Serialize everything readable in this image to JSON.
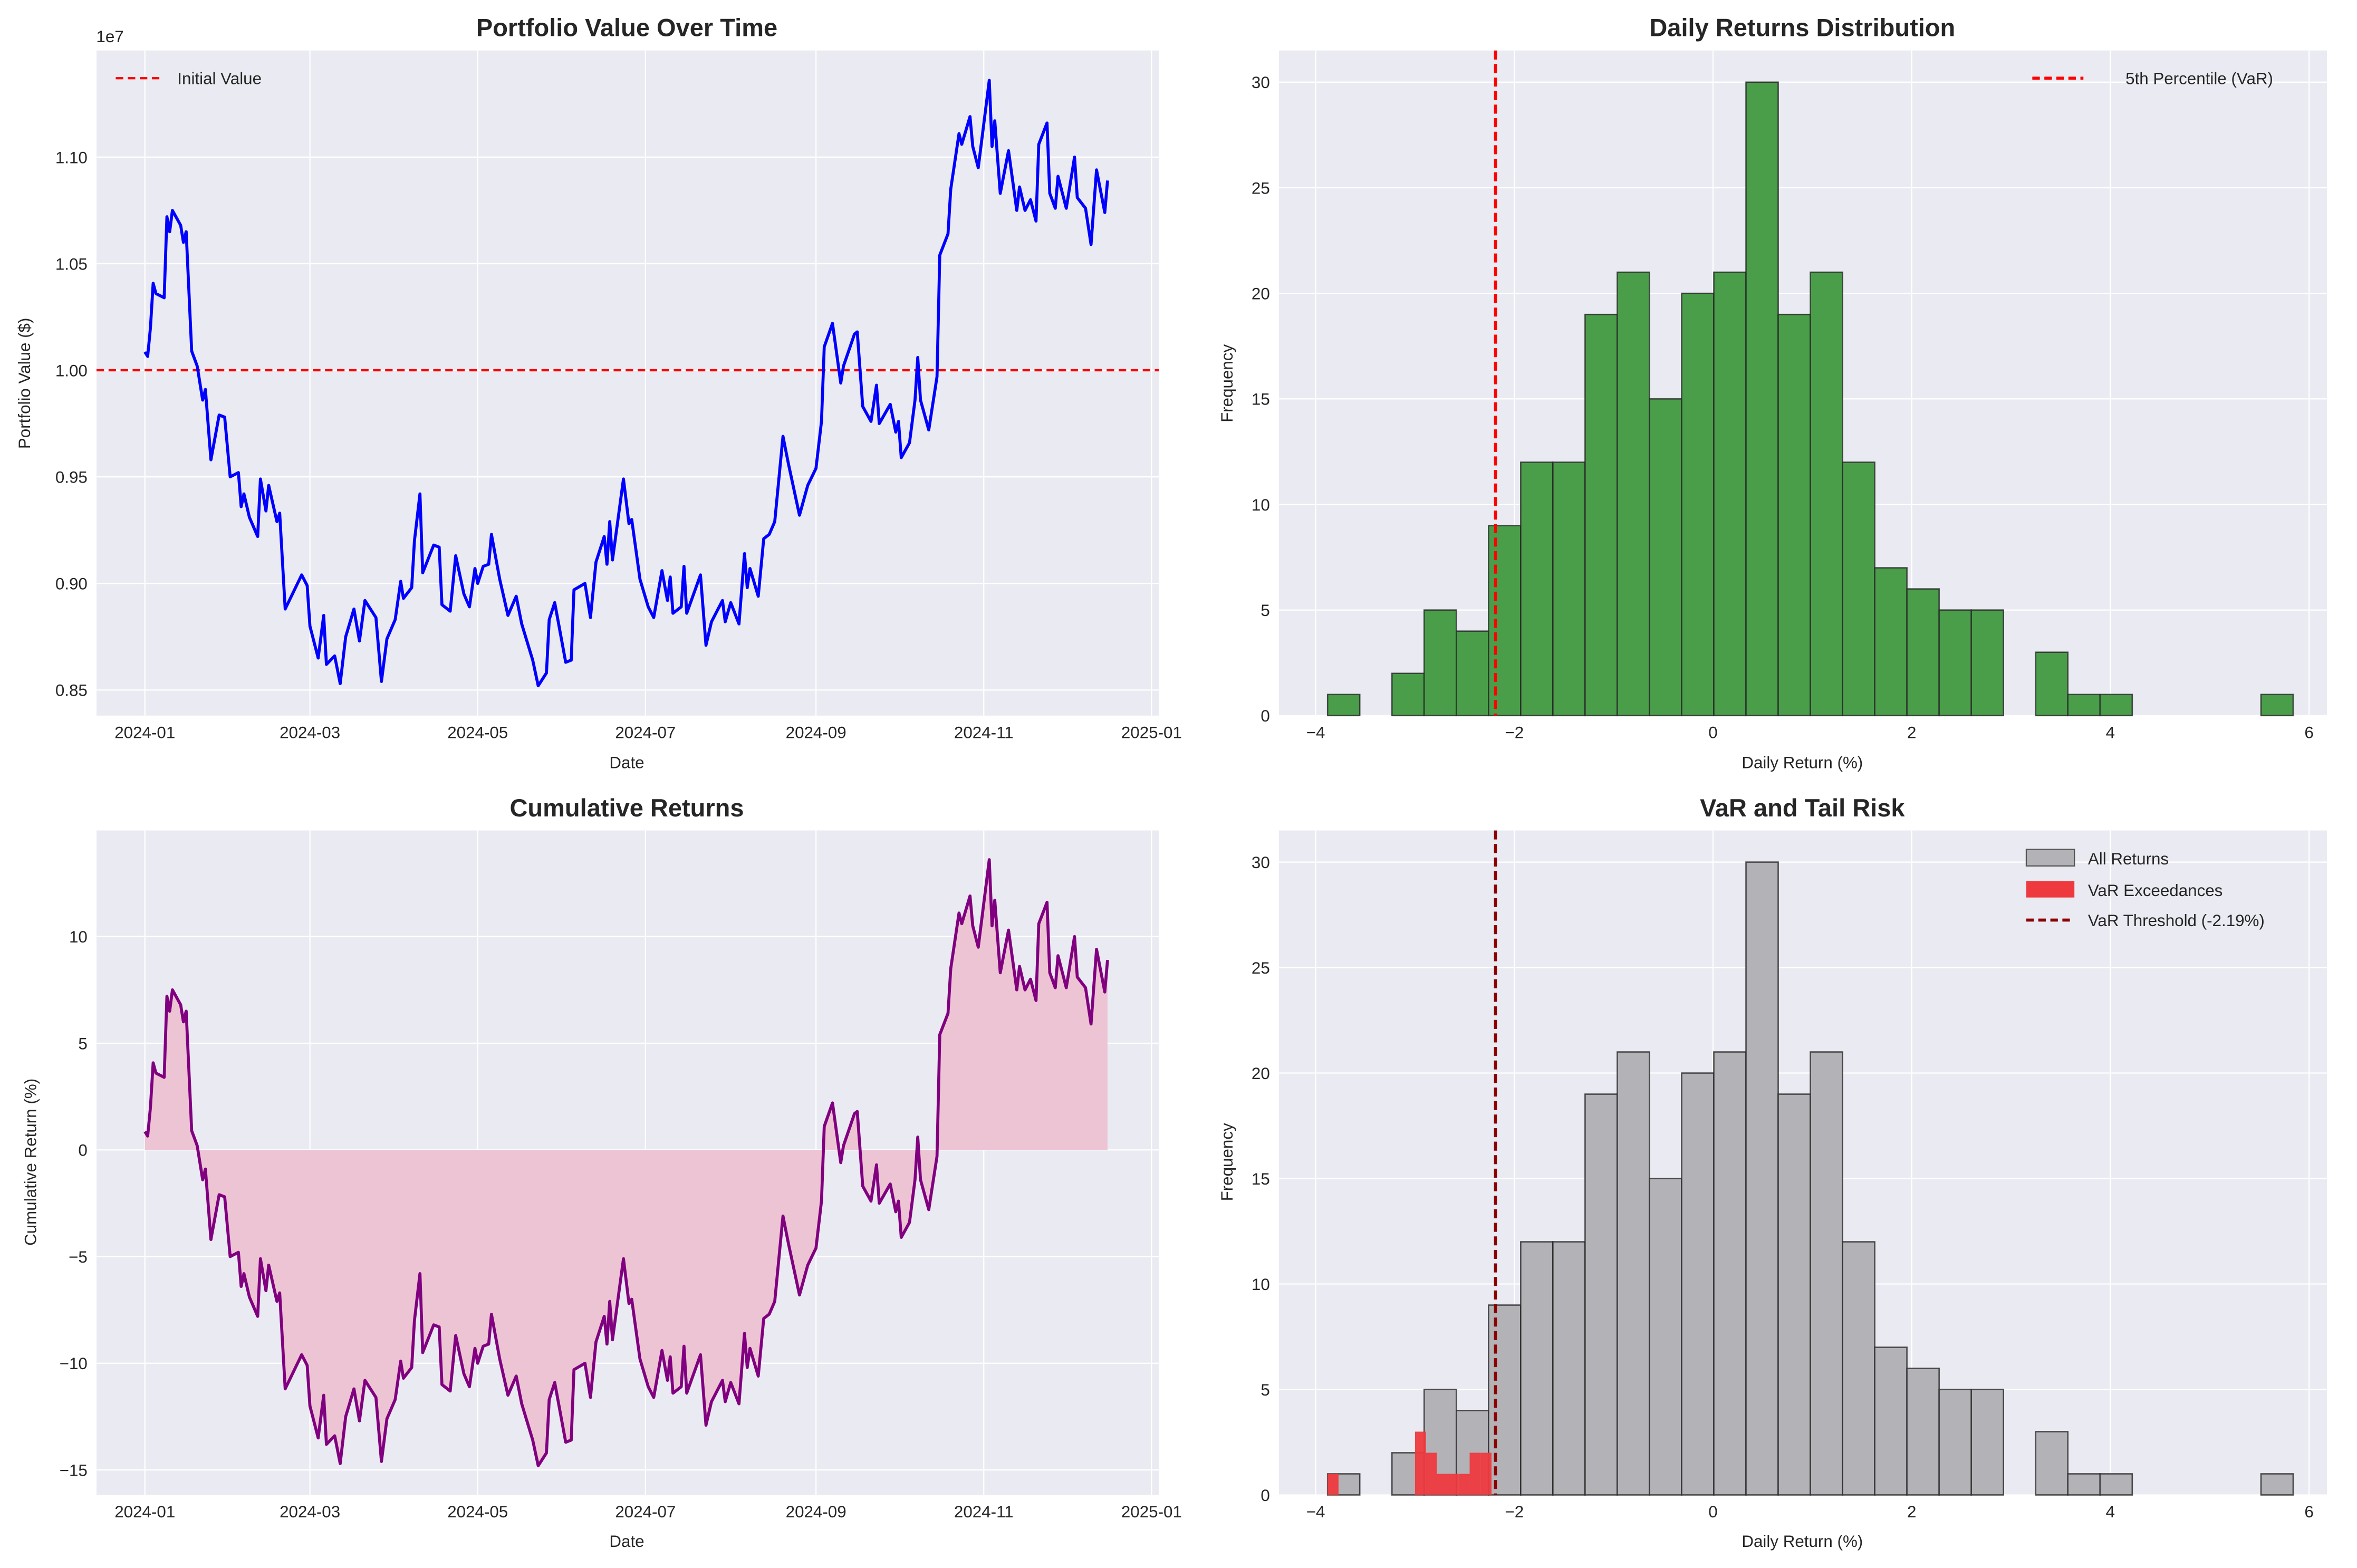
{
  "chart_data": [
    {
      "type": "line",
      "title": "Portfolio Value Over Time",
      "xlabel": "Date",
      "ylabel": "Portfolio Value ($)",
      "y_offset_label": "1e7",
      "xticks": [
        "2024-01",
        "2024-03",
        "2024-05",
        "2024-07",
        "2024-09",
        "2024-11",
        "2025-01"
      ],
      "yticks": [
        "0.85",
        "0.90",
        "0.95",
        "1.00",
        "1.05",
        "1.10"
      ],
      "ylim": [
        0.838,
        1.15
      ],
      "grid": true,
      "legend": {
        "position": "top-left",
        "entries": [
          "Initial Value"
        ]
      },
      "colors": {
        "line": "#0000ff",
        "reference": "#ff0000"
      },
      "reference_line": 1.0,
      "x": [
        "2024-01-01",
        "2024-01-02",
        "2024-01-03",
        "2024-01-04",
        "2024-01-05",
        "2024-01-08",
        "2024-01-09",
        "2024-01-10",
        "2024-01-11",
        "2024-01-14",
        "2024-01-15",
        "2024-01-16",
        "2024-01-18",
        "2024-01-20",
        "2024-01-22",
        "2024-01-23",
        "2024-01-25",
        "2024-01-28",
        "2024-01-30",
        "2024-02-01",
        "2024-02-04",
        "2024-02-05",
        "2024-02-06",
        "2024-02-08",
        "2024-02-11",
        "2024-02-12",
        "2024-02-14",
        "2024-02-15",
        "2024-02-18",
        "2024-02-19",
        "2024-02-21",
        "2024-02-27",
        "2024-02-29",
        "2024-03-01",
        "2024-03-04",
        "2024-03-06",
        "2024-03-07",
        "2024-03-10",
        "2024-03-12",
        "2024-03-14",
        "2024-03-17",
        "2024-03-19",
        "2024-03-21",
        "2024-03-25",
        "2024-03-27",
        "2024-03-29",
        "2024-04-01",
        "2024-04-03",
        "2024-04-04",
        "2024-04-07",
        "2024-04-08",
        "2024-04-10",
        "2024-04-11",
        "2024-04-15",
        "2024-04-17",
        "2024-04-18",
        "2024-04-21",
        "2024-04-23",
        "2024-04-26",
        "2024-04-28",
        "2024-04-30",
        "2024-05-01",
        "2024-05-03",
        "2024-05-05",
        "2024-05-06",
        "2024-05-09",
        "2024-05-12",
        "2024-05-15",
        "2024-05-17",
        "2024-05-21",
        "2024-05-23",
        "2024-05-26",
        "2024-05-27",
        "2024-05-29",
        "2024-06-02",
        "2024-06-04",
        "2024-06-05",
        "2024-06-09",
        "2024-06-11",
        "2024-06-13",
        "2024-06-16",
        "2024-06-17",
        "2024-06-18",
        "2024-06-19",
        "2024-06-23",
        "2024-06-25",
        "2024-06-26",
        "2024-06-29",
        "2024-07-02",
        "2024-07-04",
        "2024-07-07",
        "2024-07-09",
        "2024-07-10",
        "2024-07-11",
        "2024-07-14",
        "2024-07-15",
        "2024-07-16",
        "2024-07-21",
        "2024-07-23",
        "2024-07-25",
        "2024-07-29",
        "2024-07-30",
        "2024-08-01",
        "2024-08-04",
        "2024-08-06",
        "2024-08-07",
        "2024-08-08",
        "2024-08-11",
        "2024-08-13",
        "2024-08-15",
        "2024-08-17",
        "2024-08-20",
        "2024-08-22",
        "2024-08-26",
        "2024-08-29",
        "2024-09-01",
        "2024-09-03",
        "2024-09-04",
        "2024-09-07",
        "2024-09-10",
        "2024-09-11",
        "2024-09-15",
        "2024-09-16",
        "2024-09-18",
        "2024-09-21",
        "2024-09-23",
        "2024-09-24",
        "2024-09-28",
        "2024-09-30",
        "2024-10-01",
        "2024-10-02",
        "2024-10-05",
        "2024-10-07",
        "2024-10-08",
        "2024-10-09",
        "2024-10-12",
        "2024-10-15",
        "2024-10-16",
        "2024-10-19",
        "2024-10-20",
        "2024-10-23",
        "2024-10-24",
        "2024-10-27",
        "2024-10-28",
        "2024-10-30",
        "2024-11-03",
        "2024-11-04",
        "2024-11-05",
        "2024-11-07",
        "2024-11-10",
        "2024-11-13",
        "2024-11-14",
        "2024-11-16",
        "2024-11-18",
        "2024-11-20",
        "2024-11-21",
        "2024-11-24",
        "2024-11-25",
        "2024-11-27",
        "2024-11-28",
        "2024-12-01",
        "2024-12-04",
        "2024-12-05",
        "2024-12-08",
        "2024-12-10",
        "2024-12-12",
        "2024-12-15",
        "2024-12-16"
      ],
      "y": [
        1.0086,
        1.0065,
        1.0198,
        1.0408,
        1.036,
        1.034,
        1.072,
        1.065,
        1.075,
        1.068,
        1.06,
        1.065,
        1.009,
        1.002,
        0.986,
        0.991,
        0.958,
        0.979,
        0.978,
        0.95,
        0.952,
        0.936,
        0.942,
        0.931,
        0.922,
        0.949,
        0.934,
        0.946,
        0.929,
        0.933,
        0.888,
        0.904,
        0.899,
        0.88,
        0.865,
        0.885,
        0.862,
        0.866,
        0.853,
        0.875,
        0.888,
        0.873,
        0.892,
        0.884,
        0.854,
        0.874,
        0.883,
        0.901,
        0.893,
        0.898,
        0.92,
        0.942,
        0.905,
        0.918,
        0.917,
        0.89,
        0.887,
        0.913,
        0.895,
        0.889,
        0.907,
        0.9,
        0.908,
        0.909,
        0.923,
        0.902,
        0.885,
        0.894,
        0.881,
        0.864,
        0.852,
        0.858,
        0.883,
        0.891,
        0.863,
        0.864,
        0.897,
        0.9,
        0.884,
        0.91,
        0.922,
        0.909,
        0.929,
        0.911,
        0.949,
        0.928,
        0.93,
        0.902,
        0.889,
        0.884,
        0.906,
        0.892,
        0.903,
        0.886,
        0.889,
        0.908,
        0.886,
        0.904,
        0.871,
        0.882,
        0.892,
        0.882,
        0.891,
        0.881,
        0.914,
        0.898,
        0.907,
        0.894,
        0.921,
        0.923,
        0.929,
        0.969,
        0.956,
        0.932,
        0.946,
        0.954,
        0.976,
        1.011,
        1.022,
        0.994,
        1.002,
        1.017,
        1.018,
        0.983,
        0.976,
        0.993,
        0.975,
        0.984,
        0.971,
        0.976,
        0.959,
        0.966,
        0.986,
        1.006,
        0.986,
        0.972,
        0.997,
        1.054,
        1.064,
        1.085,
        1.111,
        1.106,
        1.119,
        1.105,
        1.095,
        1.136,
        1.105,
        1.117,
        1.083,
        1.103,
        1.075,
        1.086,
        1.075,
        1.08,
        1.07,
        1.106,
        1.116,
        1.083,
        1.076,
        1.091,
        1.076,
        1.1,
        1.081,
        1.076,
        1.059,
        1.094,
        1.074,
        1.089
      ]
    },
    {
      "type": "bar",
      "title": "Daily Returns Distribution",
      "xlabel": "Daily Return (%)",
      "ylabel": "Frequency",
      "xticks": [
        "−4",
        "−2",
        "0",
        "2",
        "4",
        "6"
      ],
      "yticks": [
        "0",
        "5",
        "10",
        "15",
        "20",
        "25",
        "30"
      ],
      "xlim": [
        -4.37,
        6.18
      ],
      "ylim": [
        0,
        31.5
      ],
      "grid": true,
      "legend": {
        "position": "top-right",
        "entries": [
          "5th Percentile (VaR)"
        ]
      },
      "colors": {
        "bars": "#4a9e4a",
        "edge": "#262626",
        "var_line": "#ff0000"
      },
      "bin_start": -3.88,
      "bin_width": 0.324,
      "counts": [
        1,
        0,
        2,
        5,
        4,
        9,
        12,
        12,
        19,
        21,
        15,
        20,
        21,
        30,
        19,
        21,
        12,
        7,
        6,
        5,
        5,
        0,
        3,
        1,
        1,
        0,
        0,
        0,
        0,
        1
      ],
      "var_value": -2.19
    },
    {
      "type": "area",
      "title": "Cumulative Returns",
      "xlabel": "Date",
      "ylabel": "Cumulative Return (%)",
      "xticks": [
        "2024-01",
        "2024-03",
        "2024-05",
        "2024-07",
        "2024-09",
        "2024-11",
        "2025-01"
      ],
      "yticks": [
        "−15",
        "−10",
        "−5",
        "0",
        "5",
        "10"
      ],
      "ylim": [
        -16.17,
        14.97
      ],
      "grid": true,
      "colors": {
        "line": "#800080",
        "fill": "#ecc4d3"
      },
      "x": [
        "2024-01-01",
        "2024-01-02",
        "2024-01-03",
        "2024-01-04",
        "2024-01-05",
        "2024-01-08",
        "2024-01-09",
        "2024-01-10",
        "2024-01-11",
        "2024-01-14",
        "2024-01-15",
        "2024-01-16",
        "2024-01-18",
        "2024-01-20",
        "2024-01-22",
        "2024-01-23",
        "2024-01-25",
        "2024-01-28",
        "2024-01-30",
        "2024-02-01",
        "2024-02-04",
        "2024-02-05",
        "2024-02-06",
        "2024-02-08",
        "2024-02-11",
        "2024-02-12",
        "2024-02-14",
        "2024-02-15",
        "2024-02-18",
        "2024-02-19",
        "2024-02-21",
        "2024-02-27",
        "2024-02-29",
        "2024-03-01",
        "2024-03-04",
        "2024-03-06",
        "2024-03-07",
        "2024-03-10",
        "2024-03-12",
        "2024-03-14",
        "2024-03-17",
        "2024-03-19",
        "2024-03-21",
        "2024-03-25",
        "2024-03-27",
        "2024-03-29",
        "2024-04-01",
        "2024-04-03",
        "2024-04-04",
        "2024-04-07",
        "2024-04-08",
        "2024-04-10",
        "2024-04-11",
        "2024-04-15",
        "2024-04-17",
        "2024-04-18",
        "2024-04-21",
        "2024-04-23",
        "2024-04-26",
        "2024-04-28",
        "2024-04-30",
        "2024-05-01",
        "2024-05-03",
        "2024-05-05",
        "2024-05-06",
        "2024-05-09",
        "2024-05-12",
        "2024-05-15",
        "2024-05-17",
        "2024-05-21",
        "2024-05-23",
        "2024-05-26",
        "2024-05-27",
        "2024-05-29",
        "2024-06-02",
        "2024-06-04",
        "2024-06-05",
        "2024-06-09",
        "2024-06-11",
        "2024-06-13",
        "2024-06-16",
        "2024-06-17",
        "2024-06-18",
        "2024-06-19",
        "2024-06-23",
        "2024-06-25",
        "2024-06-26",
        "2024-06-29",
        "2024-07-02",
        "2024-07-04",
        "2024-07-07",
        "2024-07-09",
        "2024-07-10",
        "2024-07-11",
        "2024-07-14",
        "2024-07-15",
        "2024-07-16",
        "2024-07-21",
        "2024-07-23",
        "2024-07-25",
        "2024-07-29",
        "2024-07-30",
        "2024-08-01",
        "2024-08-04",
        "2024-08-06",
        "2024-08-07",
        "2024-08-08",
        "2024-08-11",
        "2024-08-13",
        "2024-08-15",
        "2024-08-17",
        "2024-08-20",
        "2024-08-22",
        "2024-08-26",
        "2024-08-29",
        "2024-09-01",
        "2024-09-03",
        "2024-09-04",
        "2024-09-07",
        "2024-09-10",
        "2024-09-11",
        "2024-09-15",
        "2024-09-16",
        "2024-09-18",
        "2024-09-21",
        "2024-09-23",
        "2024-09-24",
        "2024-09-28",
        "2024-09-30",
        "2024-10-01",
        "2024-10-02",
        "2024-10-05",
        "2024-10-07",
        "2024-10-08",
        "2024-10-09",
        "2024-10-12",
        "2024-10-15",
        "2024-10-16",
        "2024-10-19",
        "2024-10-20",
        "2024-10-23",
        "2024-10-24",
        "2024-10-27",
        "2024-10-28",
        "2024-10-30",
        "2024-11-03",
        "2024-11-04",
        "2024-11-05",
        "2024-11-07",
        "2024-11-10",
        "2024-11-13",
        "2024-11-14",
        "2024-11-16",
        "2024-11-18",
        "2024-11-20",
        "2024-11-21",
        "2024-11-24",
        "2024-11-25",
        "2024-11-27",
        "2024-11-28",
        "2024-12-01",
        "2024-12-04",
        "2024-12-05",
        "2024-12-08",
        "2024-12-10",
        "2024-12-12",
        "2024-12-15",
        "2024-12-16"
      ],
      "y": [
        0.86,
        0.65,
        1.98,
        4.08,
        3.6,
        3.4,
        7.2,
        6.5,
        7.5,
        6.8,
        6.0,
        6.5,
        0.9,
        0.2,
        -1.4,
        -0.9,
        -4.2,
        -2.1,
        -2.2,
        -5.0,
        -4.8,
        -6.4,
        -5.8,
        -6.9,
        -7.8,
        -5.1,
        -6.6,
        -5.4,
        -7.1,
        -6.7,
        -11.2,
        -9.6,
        -10.1,
        -12.0,
        -13.5,
        -11.5,
        -13.8,
        -13.4,
        -14.7,
        -12.5,
        -11.2,
        -12.7,
        -10.8,
        -11.6,
        -14.6,
        -12.6,
        -11.7,
        -9.9,
        -10.7,
        -10.2,
        -8.0,
        -5.8,
        -9.5,
        -8.2,
        -8.3,
        -11.0,
        -11.3,
        -8.7,
        -10.5,
        -11.1,
        -9.3,
        -10.0,
        -9.2,
        -9.1,
        -7.7,
        -9.8,
        -11.5,
        -10.6,
        -11.9,
        -13.6,
        -14.8,
        -14.2,
        -11.7,
        -10.9,
        -13.7,
        -13.6,
        -10.3,
        -10.0,
        -11.6,
        -9.0,
        -7.8,
        -9.1,
        -7.1,
        -8.9,
        -5.1,
        -7.2,
        -7.0,
        -9.8,
        -11.1,
        -11.6,
        -9.4,
        -10.8,
        -9.7,
        -11.4,
        -11.1,
        -9.2,
        -11.4,
        -9.6,
        -12.9,
        -11.8,
        -10.8,
        -11.8,
        -10.9,
        -11.9,
        -8.6,
        -10.2,
        -9.3,
        -10.6,
        -7.9,
        -7.7,
        -7.1,
        -3.1,
        -4.4,
        -6.8,
        -5.4,
        -4.6,
        -2.4,
        1.1,
        2.2,
        -0.6,
        0.2,
        1.7,
        1.8,
        -1.7,
        -2.4,
        -0.7,
        -2.5,
        -1.6,
        -2.9,
        -2.4,
        -4.1,
        -3.4,
        -1.4,
        0.6,
        -1.4,
        -2.8,
        -0.3,
        5.4,
        6.4,
        8.5,
        11.1,
        10.6,
        11.9,
        10.5,
        9.5,
        13.6,
        10.5,
        11.7,
        8.3,
        10.3,
        7.5,
        8.6,
        7.5,
        8.0,
        7.0,
        10.6,
        11.6,
        8.3,
        7.6,
        9.1,
        7.6,
        10.0,
        8.1,
        7.6,
        5.9,
        9.4,
        7.4,
        8.9
      ]
    },
    {
      "type": "bar",
      "title": "VaR and Tail Risk",
      "xlabel": "Daily Return (%)",
      "ylabel": "Frequency",
      "xticks": [
        "−4",
        "−2",
        "0",
        "2",
        "4",
        "6"
      ],
      "yticks": [
        "0",
        "5",
        "10",
        "15",
        "20",
        "25",
        "30"
      ],
      "xlim": [
        -4.37,
        6.18
      ],
      "ylim": [
        0,
        31.5
      ],
      "grid": true,
      "legend": {
        "position": "top-right",
        "entries": [
          "All Returns",
          "VaR Exceedances",
          "VaR Threshold (-2.19%)"
        ]
      },
      "colors": {
        "all": "#b3b2b7",
        "exceed": "#ee3a3e",
        "threshold": "#8b0000"
      },
      "series": [
        {
          "name": "All Returns",
          "bin_start": -3.88,
          "bin_width": 0.324,
          "counts": [
            1,
            0,
            2,
            5,
            4,
            9,
            12,
            12,
            19,
            21,
            15,
            20,
            21,
            30,
            19,
            21,
            12,
            7,
            6,
            5,
            5,
            0,
            3,
            1,
            1,
            0,
            0,
            0,
            0,
            1
          ]
        },
        {
          "name": "VaR Exceedances",
          "bin_start": -3.88,
          "bin_width": 0.11,
          "counts": [
            1,
            0,
            0,
            0,
            0,
            0,
            0,
            0,
            3,
            2,
            1,
            1,
            1,
            2,
            2
          ]
        }
      ],
      "var_value": -2.19
    }
  ]
}
